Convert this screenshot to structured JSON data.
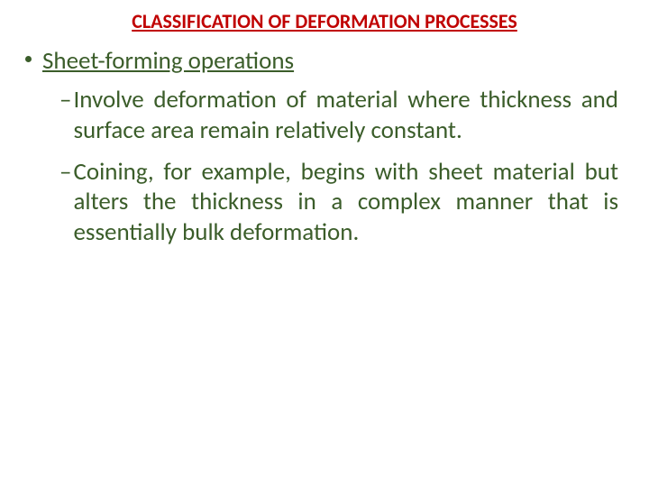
{
  "title": {
    "text": "CLASSIFICATION OF DEFORMATION  PROCESSES",
    "color": "#c00000",
    "fontsize": 22,
    "font_weight": 700
  },
  "bullet": {
    "text": "Sheet-forming operations",
    "color": "#3b5d2a",
    "fontsize": 27,
    "dot_color": "#3b5d2a",
    "dot_size": 7
  },
  "sub_items": [
    {
      "dash": "–",
      "text": "Involve deformation of material where thickness and surface area remain relatively constant.",
      "color": "#3b5d2a",
      "fontsize": 27
    },
    {
      "dash": "–",
      "text": "Coining, for example, begins with sheet material but alters the thickness in a complex manner that is essentially bulk deformation.",
      "color": "#3b5d2a",
      "fontsize": 27
    }
  ],
  "background_color": "#ffffff"
}
